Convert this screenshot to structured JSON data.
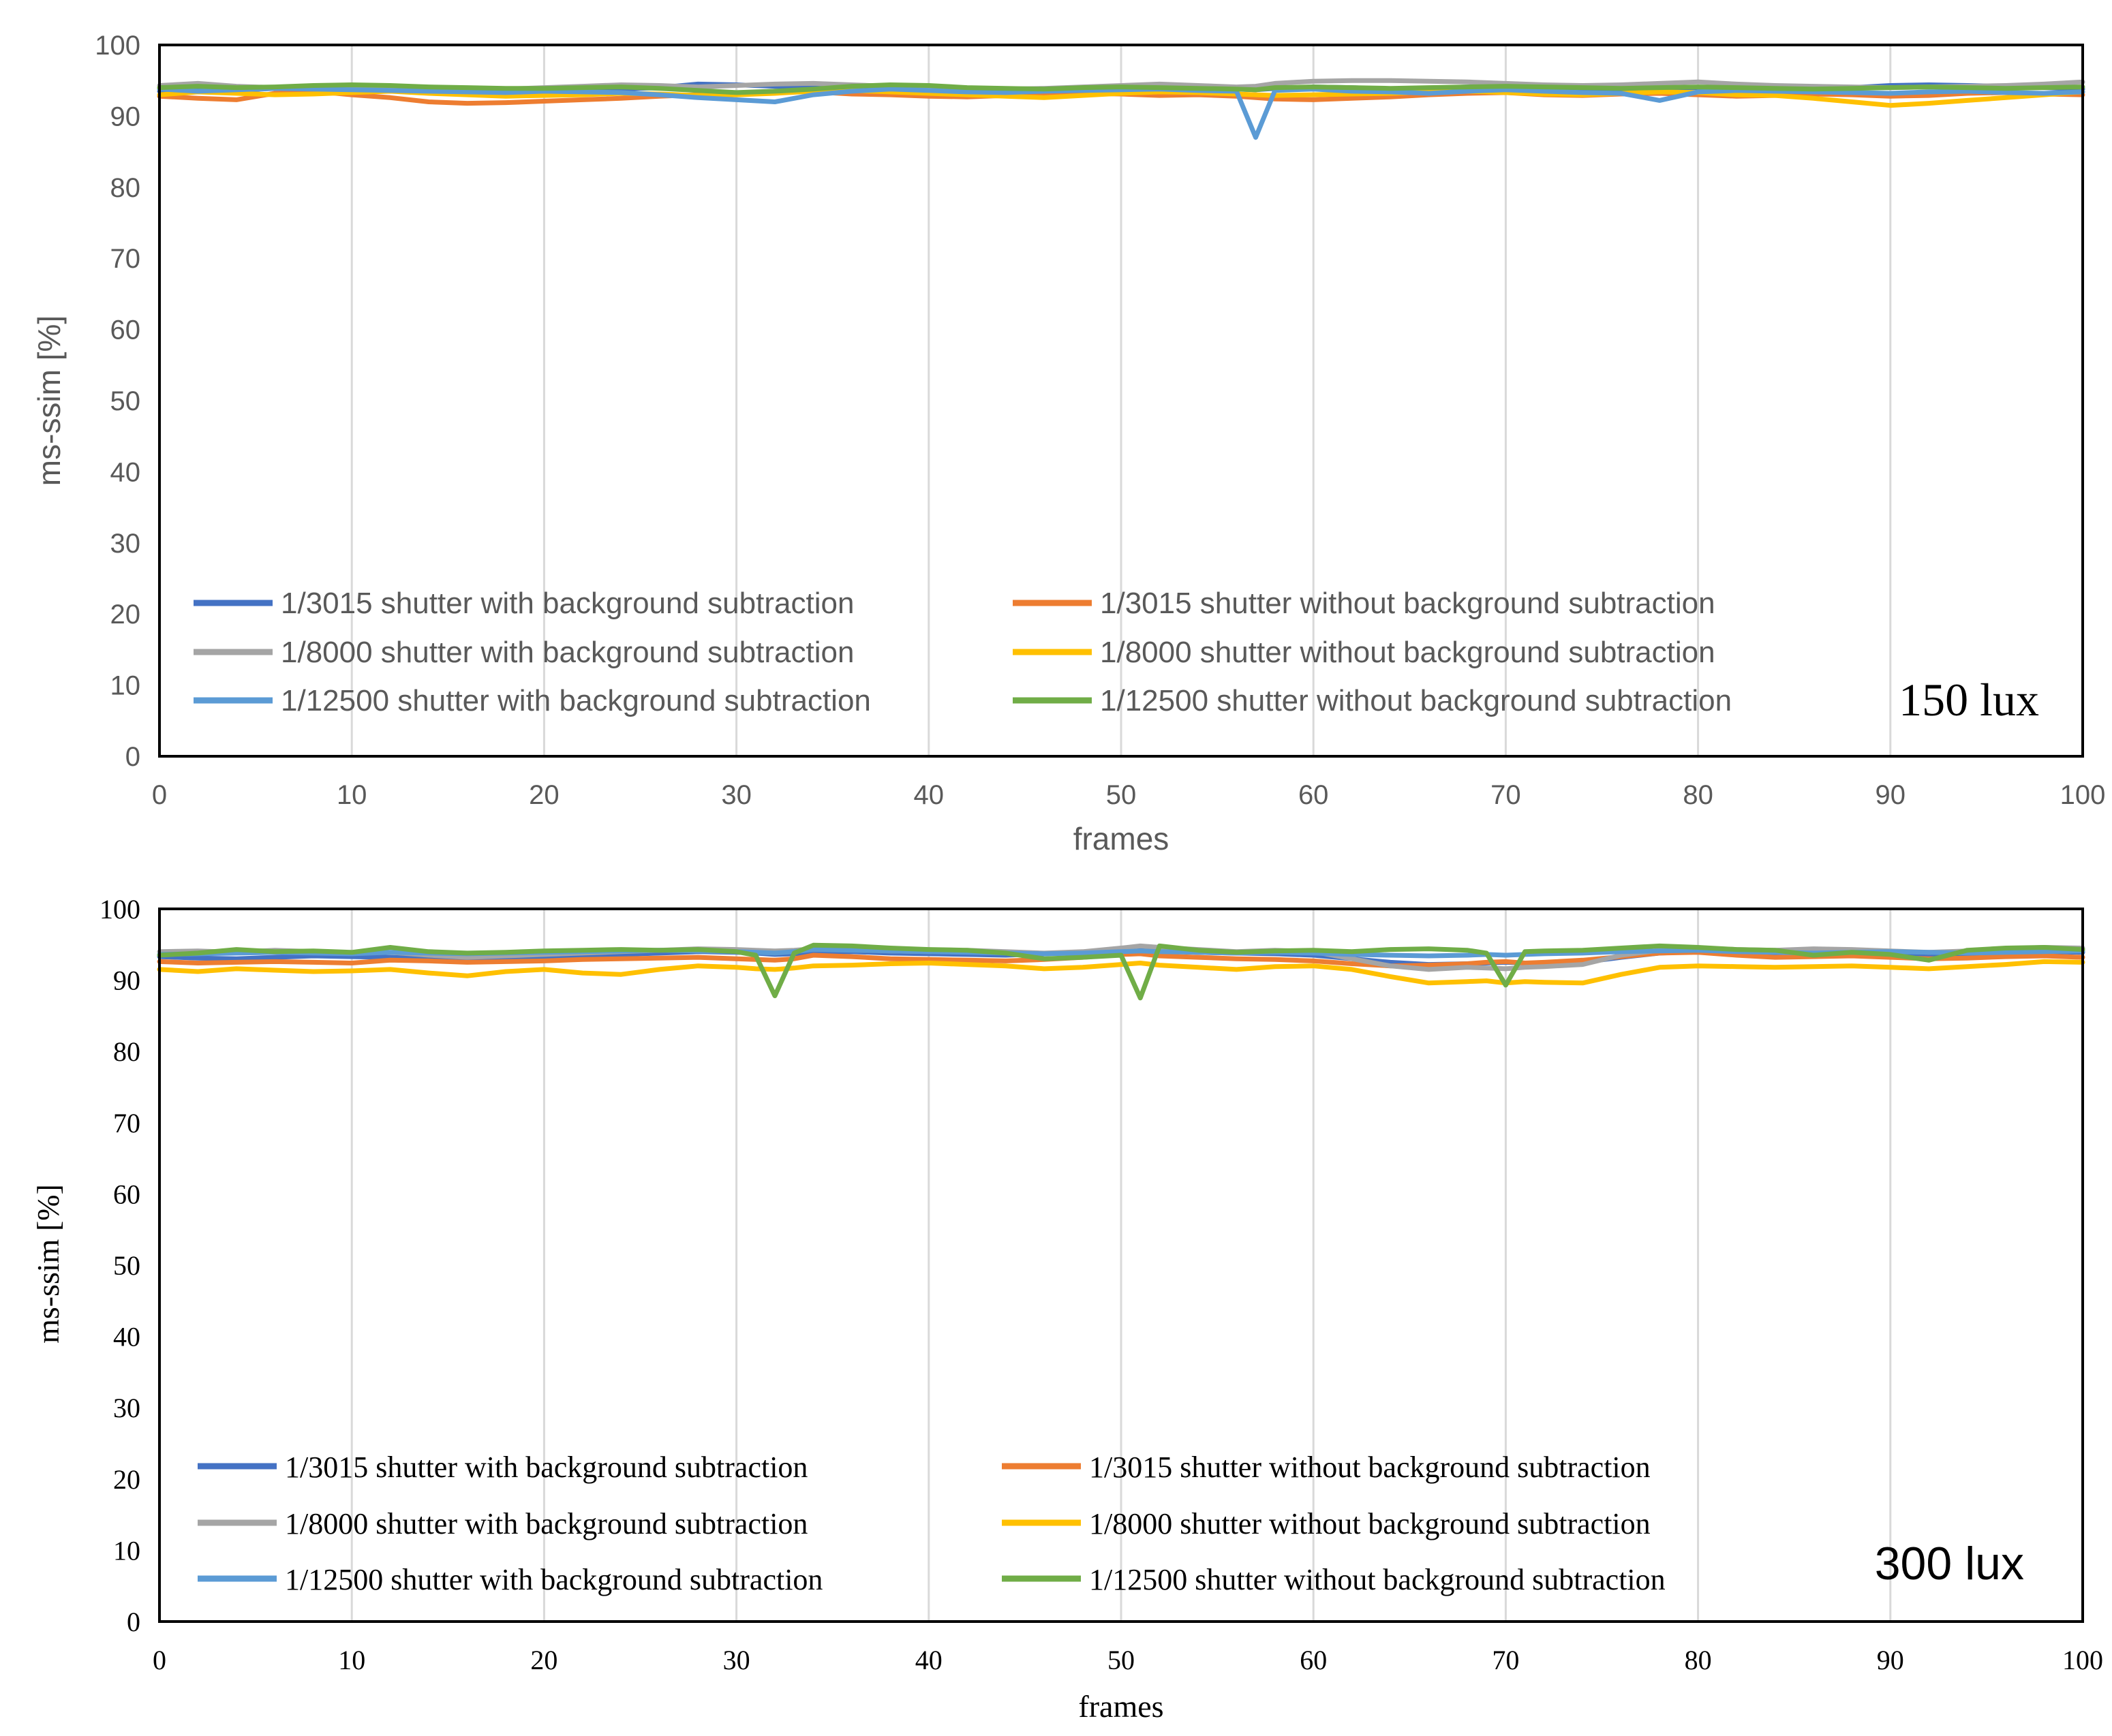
{
  "colors": {
    "1/3015 with": "#4472C4",
    "1/3015 without": "#ED7D31",
    "1/8000 with": "#A5A5A5",
    "1/8000 without": "#FFC000",
    "1/12500 with": "#5B9BD5",
    "1/12500 without": "#70AD47",
    "grid": "#D9D9D9",
    "frame": "#000000"
  },
  "chart_data": [
    {
      "type": "line",
      "annotation": "150 lux",
      "xlabel": "frames",
      "ylabel": "ms-ssim [%]",
      "xlim": [
        0,
        100
      ],
      "ylim": [
        0,
        100
      ],
      "xticks": [
        0,
        10,
        20,
        30,
        40,
        50,
        60,
        70,
        80,
        90,
        100
      ],
      "yticks": [
        0,
        10,
        20,
        30,
        40,
        50,
        60,
        70,
        80,
        90,
        100
      ],
      "grid": "vertical",
      "legend_position": "lower-left, two columns",
      "x": [
        0,
        2,
        4,
        6,
        8,
        10,
        12,
        14,
        16,
        18,
        20,
        22,
        24,
        26,
        28,
        30,
        32,
        34,
        36,
        38,
        40,
        42,
        44,
        46,
        48,
        50,
        52,
        54,
        56,
        57,
        58,
        60,
        62,
        64,
        66,
        68,
        70,
        72,
        74,
        76,
        78,
        80,
        82,
        84,
        86,
        88,
        90,
        92,
        94,
        96,
        98,
        100
      ],
      "series": [
        {
          "name": "1/3015 shutter with background subtraction",
          "color_key": "1/3015 with",
          "values": [
            93.5,
            93.8,
            93.6,
            93.9,
            94.0,
            94.1,
            93.9,
            93.7,
            93.6,
            93.5,
            93.4,
            93.6,
            93.8,
            94.0,
            94.5,
            94.4,
            94.2,
            94.0,
            93.9,
            93.8,
            93.6,
            93.5,
            93.4,
            93.6,
            93.8,
            94.0,
            94.1,
            93.9,
            93.8,
            93.7,
            93.9,
            94.1,
            94.0,
            93.8,
            93.9,
            94.1,
            94.2,
            94.0,
            93.9,
            93.8,
            93.9,
            94.0,
            94.1,
            94.2,
            94.1,
            94.0,
            94.3,
            94.4,
            94.3,
            94.2,
            94.0,
            93.8
          ]
        },
        {
          "name": "1/3015 shutter without background subtraction",
          "color_key": "1/3015 without",
          "values": [
            92.8,
            92.5,
            92.3,
            93.2,
            93.5,
            93.0,
            92.6,
            92.0,
            91.8,
            91.9,
            92.1,
            92.3,
            92.5,
            92.8,
            93.0,
            93.2,
            93.5,
            93.4,
            93.1,
            93.0,
            92.8,
            92.7,
            92.9,
            93.0,
            93.2,
            93.1,
            92.9,
            93.0,
            92.8,
            92.6,
            92.4,
            92.3,
            92.5,
            92.7,
            93.0,
            93.2,
            93.3,
            93.0,
            92.9,
            93.1,
            93.2,
            93.0,
            92.8,
            92.9,
            93.1,
            93.0,
            92.8,
            92.9,
            93.2,
            93.3,
            93.1,
            93.0
          ]
        },
        {
          "name": "1/8000 shutter with background subtraction",
          "color_key": "1/8000 with",
          "values": [
            94.3,
            94.6,
            94.2,
            94.0,
            94.2,
            94.3,
            94.1,
            94.0,
            93.9,
            93.8,
            94.0,
            94.2,
            94.4,
            94.3,
            94.1,
            94.3,
            94.5,
            94.6,
            94.4,
            94.2,
            94.0,
            93.9,
            93.8,
            93.9,
            94.1,
            94.3,
            94.5,
            94.3,
            94.1,
            94.2,
            94.6,
            94.9,
            95.0,
            95.0,
            94.9,
            94.8,
            94.6,
            94.4,
            94.3,
            94.4,
            94.6,
            94.8,
            94.5,
            94.3,
            94.2,
            94.1,
            94.0,
            94.1,
            94.2,
            94.3,
            94.5,
            94.8
          ]
        },
        {
          "name": "1/8000 shutter without background subtraction",
          "color_key": "1/8000 without",
          "values": [
            93.0,
            93.4,
            93.2,
            93.0,
            93.1,
            93.3,
            93.5,
            93.2,
            93.0,
            92.8,
            92.9,
            93.0,
            93.2,
            93.1,
            92.9,
            93.0,
            93.2,
            93.5,
            93.6,
            93.4,
            93.2,
            93.0,
            92.8,
            92.6,
            92.9,
            93.2,
            93.4,
            93.3,
            93.1,
            93.0,
            92.9,
            93.0,
            93.1,
            93.2,
            93.4,
            93.5,
            93.3,
            93.1,
            93.0,
            93.2,
            93.4,
            93.3,
            93.0,
            92.9,
            92.5,
            92.0,
            91.5,
            91.8,
            92.2,
            92.6,
            93.0,
            93.4
          ]
        },
        {
          "name": "1/12500 shutter with background subtraction",
          "color_key": "1/12500 with",
          "values": [
            93.8,
            93.5,
            93.7,
            93.9,
            93.8,
            93.7,
            93.6,
            93.5,
            93.4,
            93.3,
            93.5,
            93.4,
            93.3,
            93.0,
            92.6,
            92.3,
            92.0,
            93.0,
            93.5,
            93.8,
            93.6,
            93.4,
            93.3,
            93.5,
            93.6,
            93.7,
            93.8,
            93.6,
            93.5,
            87.0,
            93.6,
            93.8,
            93.5,
            93.4,
            93.2,
            93.5,
            93.7,
            93.5,
            93.3,
            93.2,
            92.2,
            93.4,
            93.6,
            93.5,
            93.4,
            93.3,
            93.2,
            93.4,
            93.5,
            93.3,
            93.2,
            93.4
          ]
        },
        {
          "name": "1/12500 shutter without background subtraction",
          "color_key": "1/12500 without",
          "values": [
            94.0,
            94.2,
            94.0,
            94.1,
            94.3,
            94.4,
            94.3,
            94.1,
            94.0,
            93.9,
            93.9,
            94.0,
            94.1,
            93.9,
            93.6,
            93.3,
            93.5,
            93.8,
            94.2,
            94.4,
            94.3,
            94.0,
            93.9,
            93.8,
            94.0,
            94.1,
            94.0,
            93.9,
            93.8,
            93.7,
            94.0,
            94.1,
            94.0,
            93.9,
            94.0,
            94.1,
            94.2,
            94.1,
            94.0,
            93.9,
            94.0,
            94.1,
            94.0,
            93.9,
            93.8,
            93.9,
            94.0,
            94.1,
            94.0,
            93.9,
            94.0,
            94.1
          ]
        }
      ]
    },
    {
      "type": "line",
      "annotation": "300 lux",
      "xlabel": "frames",
      "ylabel": "ms-ssim [%]",
      "xlim": [
        0,
        100
      ],
      "ylim": [
        0,
        100
      ],
      "xticks": [
        0,
        10,
        20,
        30,
        40,
        50,
        60,
        70,
        80,
        90,
        100
      ],
      "yticks": [
        0,
        10,
        20,
        30,
        40,
        50,
        60,
        70,
        80,
        90,
        100
      ],
      "grid": "vertical",
      "legend_position": "lower-left, two columns",
      "x": [
        0,
        2,
        4,
        6,
        8,
        10,
        12,
        14,
        16,
        18,
        20,
        22,
        24,
        26,
        28,
        30,
        31,
        32,
        33,
        34,
        36,
        38,
        40,
        42,
        44,
        46,
        48,
        50,
        51,
        52,
        54,
        56,
        58,
        60,
        62,
        64,
        66,
        68,
        69,
        70,
        71,
        72,
        74,
        76,
        78,
        80,
        82,
        84,
        86,
        88,
        90,
        92,
        94,
        96,
        98,
        100
      ],
      "series": [
        {
          "name": "1/3015 shutter with background subtraction",
          "color_key": "1/3015 with",
          "values": [
            93.3,
            93.1,
            93.0,
            93.2,
            93.4,
            93.3,
            93.2,
            93.1,
            93.0,
            93.2,
            93.3,
            93.5,
            93.6,
            93.8,
            94.0,
            93.9,
            93.8,
            93.6,
            93.7,
            93.9,
            94.0,
            93.8,
            93.7,
            93.6,
            93.5,
            93.7,
            93.9,
            94.2,
            94.3,
            94.1,
            93.9,
            93.8,
            93.7,
            93.5,
            93.0,
            92.5,
            92.2,
            92.3,
            92.4,
            92.5,
            92.4,
            92.3,
            92.5,
            93.2,
            93.8,
            94.0,
            93.9,
            93.8,
            93.9,
            94.0,
            93.8,
            93.6,
            93.7,
            93.9,
            94.0,
            93.9
          ]
        },
        {
          "name": "1/3015 shutter without background subtraction",
          "color_key": "1/3015 without",
          "values": [
            92.6,
            92.4,
            92.5,
            92.6,
            92.5,
            92.4,
            92.8,
            92.7,
            92.5,
            92.6,
            92.7,
            92.9,
            93.0,
            93.1,
            93.2,
            93.0,
            92.9,
            92.8,
            93.0,
            93.5,
            93.3,
            93.0,
            92.9,
            92.8,
            92.7,
            92.9,
            93.2,
            93.6,
            93.7,
            93.4,
            93.2,
            93.0,
            92.9,
            92.7,
            92.3,
            92.0,
            92.1,
            92.3,
            92.5,
            92.6,
            92.4,
            92.5,
            92.8,
            93.3,
            93.8,
            93.9,
            93.5,
            93.2,
            93.3,
            93.4,
            93.2,
            93.0,
            93.1,
            93.3,
            93.4,
            93.2
          ]
        },
        {
          "name": "1/8000 shutter with background subtraction",
          "color_key": "1/8000 with",
          "values": [
            94.0,
            94.1,
            93.9,
            94.2,
            94.0,
            93.8,
            93.9,
            93.5,
            93.2,
            93.4,
            93.6,
            93.8,
            94.0,
            94.2,
            94.4,
            94.3,
            94.2,
            94.1,
            94.2,
            94.4,
            94.3,
            94.1,
            94.0,
            94.2,
            94.0,
            93.8,
            94.0,
            94.5,
            94.8,
            94.6,
            94.3,
            94.0,
            94.2,
            94.0,
            93.0,
            92.0,
            91.5,
            91.8,
            91.7,
            91.6,
            91.8,
            91.9,
            92.2,
            93.5,
            94.2,
            94.5,
            94.3,
            94.2,
            94.4,
            94.3,
            94.1,
            93.9,
            94.1,
            94.4,
            94.6,
            94.5
          ]
        },
        {
          "name": "1/8000 shutter without background subtraction",
          "color_key": "1/8000 without",
          "values": [
            91.5,
            91.2,
            91.6,
            91.4,
            91.2,
            91.3,
            91.5,
            91.0,
            90.6,
            91.2,
            91.5,
            91.0,
            90.8,
            91.5,
            92.0,
            91.8,
            91.6,
            91.5,
            91.7,
            92.0,
            92.1,
            92.3,
            92.4,
            92.2,
            92.0,
            91.6,
            91.8,
            92.2,
            92.4,
            92.1,
            91.8,
            91.5,
            91.9,
            92.0,
            91.5,
            90.5,
            89.6,
            89.8,
            89.9,
            89.6,
            89.8,
            89.7,
            89.6,
            90.8,
            91.8,
            92.0,
            91.9,
            91.8,
            91.9,
            92.0,
            91.8,
            91.6,
            91.9,
            92.2,
            92.6,
            92.5
          ]
        },
        {
          "name": "1/12500 shutter with background subtraction",
          "color_key": "1/12500 with",
          "values": [
            93.6,
            93.7,
            93.8,
            93.9,
            93.8,
            93.7,
            93.9,
            93.8,
            93.7,
            93.8,
            93.9,
            94.0,
            94.1,
            94.2,
            94.1,
            94.0,
            93.9,
            93.8,
            94.0,
            94.3,
            94.2,
            94.1,
            94.0,
            93.9,
            93.8,
            93.7,
            93.8,
            94.0,
            94.1,
            94.0,
            93.9,
            93.8,
            93.9,
            93.8,
            93.6,
            93.5,
            93.4,
            93.5,
            93.6,
            93.5,
            93.6,
            93.7,
            93.8,
            94.0,
            94.1,
            94.2,
            94.0,
            93.9,
            93.8,
            93.9,
            94.0,
            93.9,
            93.8,
            93.9,
            94.0,
            94.1
          ]
        },
        {
          "name": "1/12500 shutter without background subtraction",
          "color_key": "1/12500 without",
          "values": [
            93.5,
            93.8,
            94.3,
            94.0,
            94.1,
            93.9,
            94.6,
            94.0,
            93.8,
            93.9,
            94.1,
            94.2,
            94.3,
            94.2,
            94.3,
            94.0,
            93.5,
            87.8,
            93.8,
            94.9,
            94.8,
            94.5,
            94.3,
            94.2,
            93.8,
            93.0,
            93.2,
            93.5,
            87.5,
            94.8,
            94.2,
            93.9,
            94.1,
            94.2,
            94.0,
            94.3,
            94.4,
            94.2,
            93.8,
            89.3,
            94.0,
            94.1,
            94.2,
            94.5,
            94.8,
            94.6,
            94.3,
            94.2,
            93.5,
            93.9,
            93.6,
            92.8,
            94.2,
            94.5,
            94.6,
            94.3
          ]
        }
      ]
    }
  ]
}
